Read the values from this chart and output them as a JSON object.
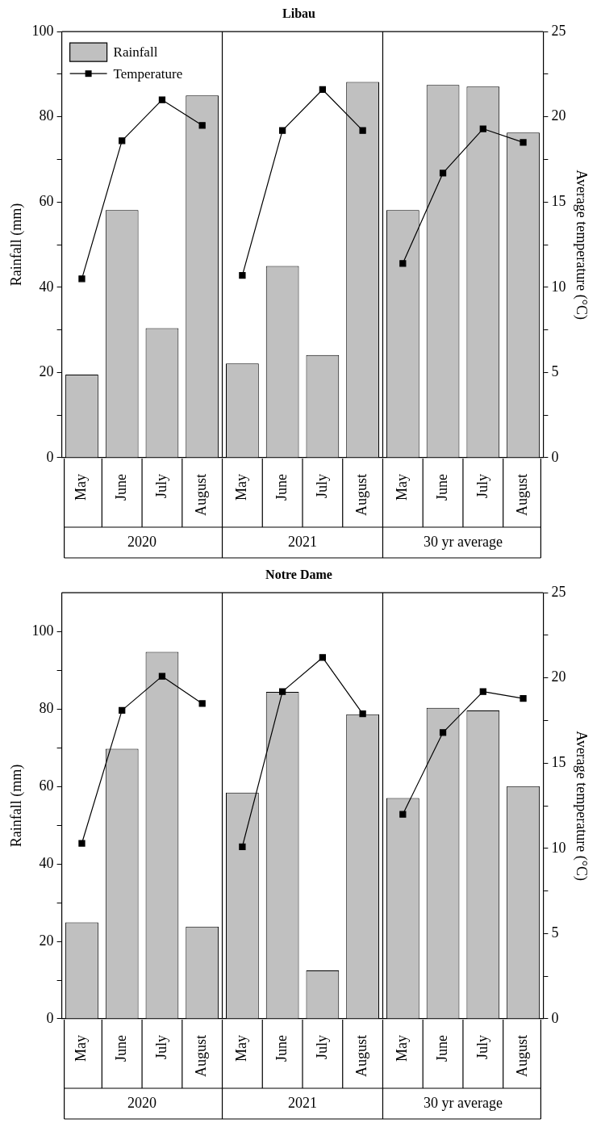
{
  "chart_data": [
    {
      "type": "bar",
      "title": "Libau",
      "ylabel": "Rainfall (mm)",
      "y2label": "Average temperature (°C)",
      "categories": [
        "May",
        "June",
        "July",
        "August",
        "May",
        "June",
        "July",
        "August",
        "May",
        "June",
        "July",
        "August"
      ],
      "annotations": [
        "2020",
        "2021",
        "30 yr average"
      ],
      "series": [
        {
          "name": "Rainfall",
          "color": "#c0c0c0",
          "values": [
            19.5,
            58.1,
            30.4,
            85.0,
            22.1,
            45.0,
            24.1,
            88.2,
            58.1,
            87.5,
            87.1,
            76.3
          ]
        },
        {
          "name": "Temperature",
          "type": "line",
          "axis": "y2",
          "color": "#000000",
          "marker": "square",
          "values": [
            10.5,
            18.6,
            21.0,
            19.5,
            10.7,
            19.2,
            21.6,
            19.2,
            11.4,
            16.7,
            19.3,
            18.5
          ]
        }
      ],
      "ylim": [
        0,
        100
      ],
      "yticks": [
        0,
        {
          "value": 10,
          "label": null
        },
        20,
        {
          "value": 30,
          "label": null
        },
        40,
        {
          "value": 50,
          "label": null
        },
        60,
        {
          "value": 70,
          "label": null
        },
        80,
        {
          "value": 90,
          "label": null
        },
        100
      ],
      "y2lim": [
        0,
        25
      ],
      "y2ticks": [
        0,
        {
          "value": 2.5,
          "label": null
        },
        5,
        {
          "value": 7.5,
          "label": null
        },
        10,
        {
          "value": 12.5,
          "label": null
        },
        15,
        {
          "value": 17.5,
          "label": null
        },
        20,
        {
          "value": 22.5,
          "label": null
        },
        25
      ],
      "legend": "top left"
    },
    {
      "type": "bar",
      "title": "Notre Dame",
      "ylabel": "Rainfall (mm)",
      "y2label": "Average temperature (°C)",
      "categories": [
        "May",
        "June",
        "July",
        "August",
        "May",
        "June",
        "July",
        "August",
        "May",
        "June",
        "July",
        "August"
      ],
      "annotations": [
        "2020",
        "2021",
        "30 yr average"
      ],
      "series": [
        {
          "color": "#c0c0c0",
          "values": [
            24.9,
            69.7,
            94.7,
            23.8,
            58.4,
            84.4,
            12.5,
            78.6,
            57.0,
            80.3,
            79.6,
            60.1
          ]
        },
        {
          "type": "line",
          "axis": "y2",
          "color": "#000000",
          "marker": "square",
          "values": [
            10.3,
            18.1,
            20.1,
            18.5,
            10.1,
            19.2,
            21.2,
            17.9,
            12.0,
            16.8,
            19.2,
            18.8
          ]
        }
      ],
      "ylim": [
        0,
        110
      ],
      "yticks": [
        0,
        {
          "value": 10,
          "label": null
        },
        20,
        {
          "value": 30,
          "label": null
        },
        40,
        {
          "value": 50,
          "label": null
        },
        60,
        {
          "value": 70,
          "label": null
        },
        80,
        {
          "value": 90,
          "label": null
        },
        100
      ],
      "y2lim": [
        0,
        25
      ],
      "y2ticks": [
        0,
        {
          "value": 2.5,
          "label": null
        },
        5,
        {
          "value": 7.5,
          "label": null
        },
        10,
        {
          "value": 12.5,
          "label": null
        },
        15,
        {
          "value": 17.5,
          "label": null
        },
        20,
        {
          "value": 22.5,
          "label": null
        },
        25
      ]
    }
  ]
}
